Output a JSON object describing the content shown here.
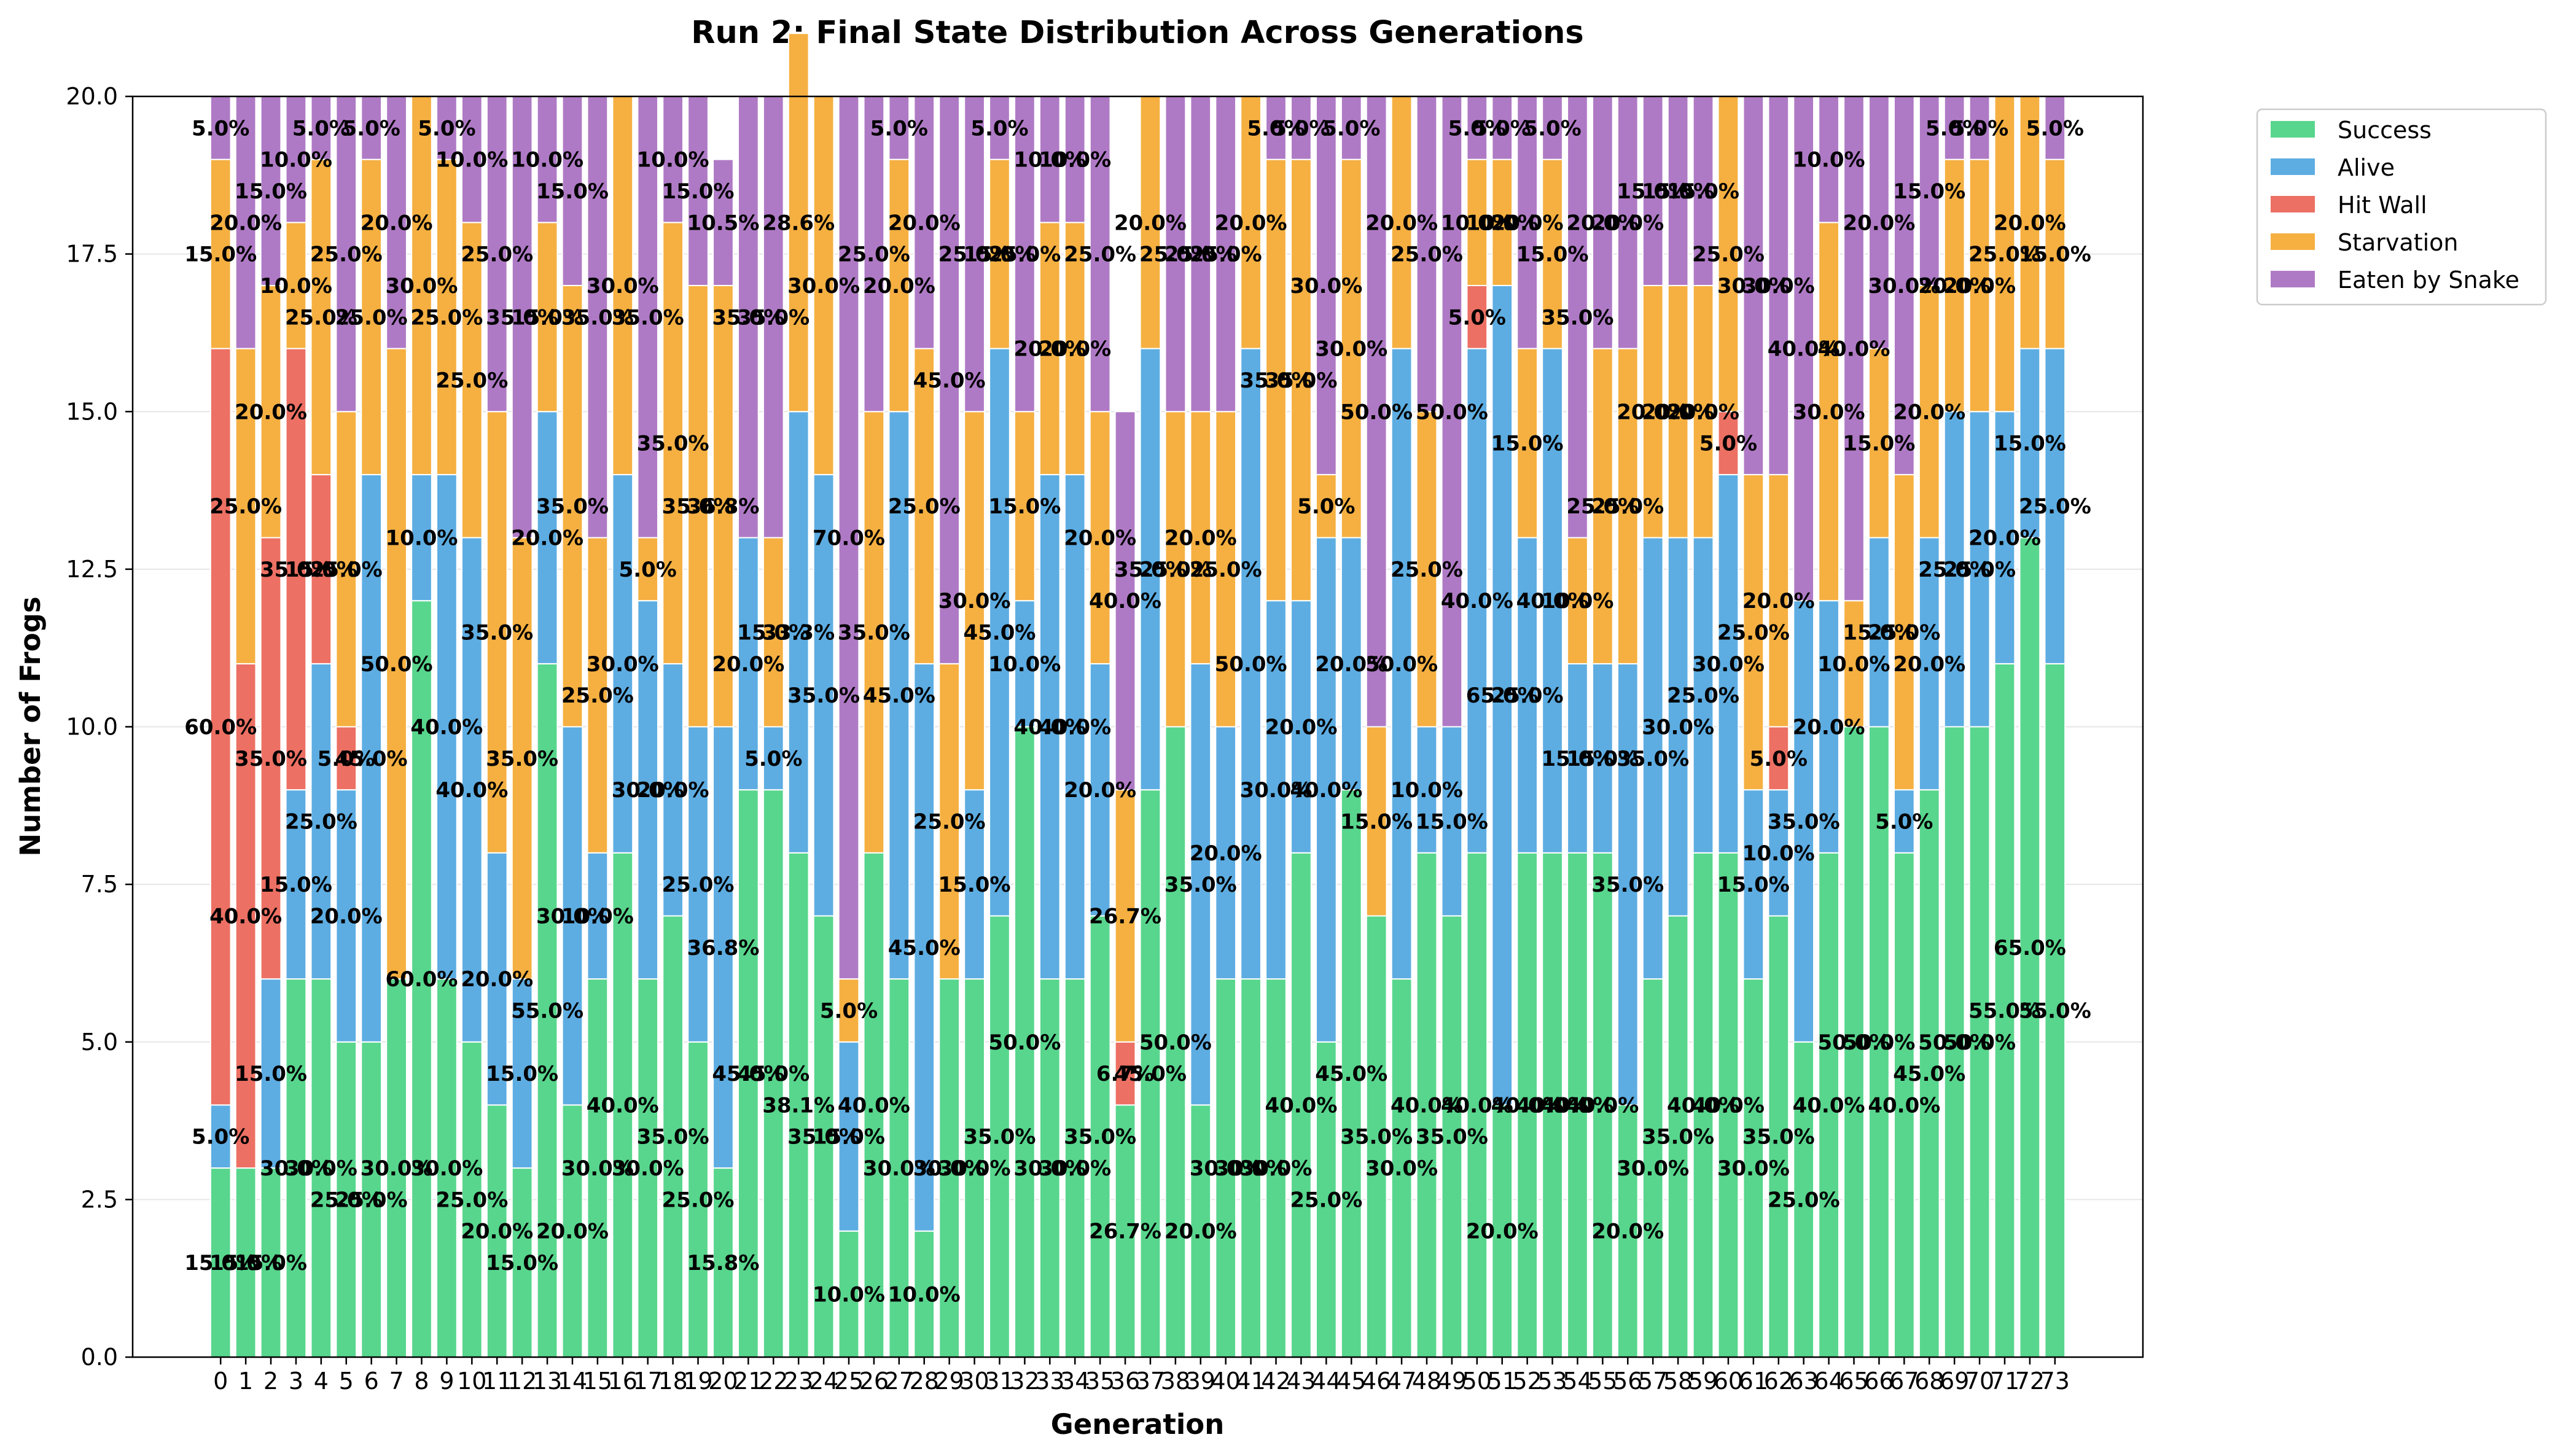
{
  "chart_data": {
    "type": "bar",
    "stacked": true,
    "title": "Run 2: Final State Distribution Across Generations",
    "xlabel": "Generation",
    "ylabel": "Number of Frogs",
    "ylim": [
      0,
      20
    ],
    "yticks": [
      "0.0",
      "2.5",
      "5.0",
      "7.5",
      "10.0",
      "12.5",
      "15.0",
      "17.5",
      "20.0"
    ],
    "grid": "horizontal",
    "legend_position": "outside top-right",
    "categories": [
      "0",
      "1",
      "2",
      "3",
      "4",
      "5",
      "6",
      "7",
      "8",
      "9",
      "10",
      "11",
      "12",
      "13",
      "14",
      "15",
      "16",
      "17",
      "18",
      "19",
      "20",
      "21",
      "22",
      "23",
      "24",
      "25",
      "26",
      "27",
      "28",
      "29",
      "30",
      "31",
      "32",
      "33",
      "34",
      "35",
      "36",
      "37",
      "38",
      "39",
      "40",
      "41",
      "42",
      "43",
      "44",
      "45",
      "46",
      "47",
      "48",
      "49",
      "50",
      "51",
      "52",
      "53",
      "54",
      "55",
      "56",
      "57",
      "58",
      "59",
      "60",
      "61",
      "62",
      "63",
      "64",
      "65",
      "66",
      "67",
      "68",
      "69",
      "70",
      "71",
      "72",
      "73"
    ],
    "series": [
      {
        "name": "Success",
        "color": "#58d68d",
        "values": [
          3,
          3,
          3,
          6,
          6,
          5,
          5,
          6,
          12,
          6,
          5,
          4,
          3,
          11,
          4,
          6,
          8,
          6,
          7,
          5,
          3,
          9,
          9,
          8,
          7,
          2,
          8,
          6,
          2,
          6,
          6,
          7,
          10,
          6,
          6,
          7,
          4,
          9,
          10,
          4,
          6,
          6,
          6,
          8,
          5,
          9,
          7,
          6,
          8,
          7,
          8,
          4,
          8,
          8,
          8,
          8,
          4,
          6,
          7,
          8,
          8,
          6,
          7,
          5,
          8,
          10,
          10,
          8,
          9,
          10,
          10,
          11,
          13,
          11
        ]
      },
      {
        "name": "Alive",
        "color": "#5dade2",
        "values": [
          1,
          0,
          3,
          3,
          5,
          4,
          9,
          0,
          2,
          8,
          8,
          4,
          3,
          4,
          6,
          2,
          6,
          6,
          4,
          5,
          7,
          4,
          1,
          7,
          7,
          3,
          0,
          9,
          9,
          0,
          3,
          9,
          2,
          8,
          8,
          4,
          0,
          7,
          0,
          7,
          4,
          10,
          6,
          4,
          8,
          4,
          0,
          10,
          2,
          3,
          8,
          13,
          5,
          8,
          3,
          3,
          7,
          7,
          6,
          5,
          6,
          3,
          2,
          7,
          4,
          0,
          3,
          1,
          4,
          5,
          5,
          4,
          3,
          5
        ]
      },
      {
        "name": "Hit Wall",
        "color": "#ec7063",
        "values": [
          12,
          8,
          7,
          7,
          3,
          1,
          0,
          0,
          0,
          0,
          0,
          0,
          0,
          0,
          0,
          0,
          0,
          0,
          0,
          0,
          0,
          0,
          0,
          0,
          0,
          0,
          0,
          0,
          0,
          0,
          0,
          0,
          0,
          0,
          0,
          0,
          1,
          0,
          0,
          0,
          0,
          0,
          0,
          0,
          0,
          0,
          0,
          0,
          0,
          0,
          1,
          0,
          0,
          0,
          0,
          0,
          0,
          0,
          0,
          0,
          1,
          0,
          1,
          0,
          0,
          0,
          0,
          0,
          0,
          0,
          0,
          0,
          0,
          0
        ]
      },
      {
        "name": "Starvation",
        "color": "#f5b041",
        "values": [
          3,
          5,
          4,
          2,
          5,
          5,
          5,
          10,
          6,
          5,
          5,
          7,
          7,
          3,
          7,
          5,
          6,
          1,
          7,
          7,
          7,
          0,
          3,
          6,
          6,
          1,
          7,
          4,
          5,
          5,
          6,
          3,
          3,
          4,
          4,
          4,
          4,
          4,
          5,
          4,
          5,
          4,
          7,
          7,
          1,
          6,
          3,
          4,
          5,
          0,
          2,
          2,
          3,
          3,
          2,
          5,
          5,
          4,
          4,
          4,
          5,
          5,
          4,
          0,
          6,
          2,
          3,
          5,
          4,
          4,
          4,
          5,
          4,
          3
        ]
      },
      {
        "name": "Eaten by Snake",
        "color": "#af7ac5",
        "values": [
          1,
          4,
          3,
          2,
          1,
          5,
          1,
          4,
          0,
          1,
          2,
          5,
          7,
          2,
          3,
          7,
          0,
          7,
          2,
          3,
          2,
          7,
          7,
          0,
          0,
          14,
          5,
          1,
          4,
          9,
          5,
          1,
          5,
          2,
          2,
          5,
          6,
          0,
          5,
          5,
          5,
          0,
          1,
          1,
          6,
          1,
          10,
          0,
          5,
          10,
          1,
          1,
          4,
          1,
          7,
          4,
          4,
          3,
          3,
          3,
          0,
          6,
          6,
          8,
          2,
          8,
          4,
          6,
          3,
          1,
          1,
          0,
          0,
          1
        ]
      }
    ]
  },
  "legend": {
    "items": [
      {
        "label": "Success",
        "color": "#58d68d"
      },
      {
        "label": "Alive",
        "color": "#5dade2"
      },
      {
        "label": "Hit Wall",
        "color": "#ec7063"
      },
      {
        "label": "Starvation",
        "color": "#f5b041"
      },
      {
        "label": "Eaten by Snake",
        "color": "#af7ac5"
      }
    ]
  }
}
